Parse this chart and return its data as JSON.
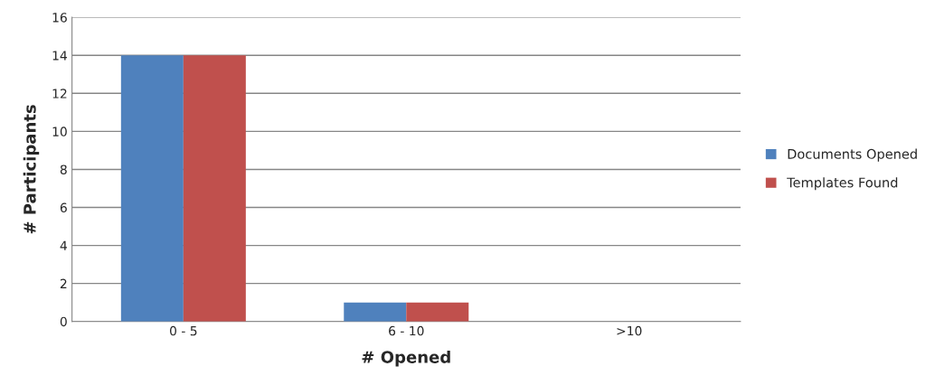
{
  "chart_data": {
    "type": "bar",
    "xlabel": "# Opened",
    "ylabel": "# Participants",
    "categories": [
      "0 - 5",
      "6 - 10",
      ">10"
    ],
    "series": [
      {
        "name": "Documents Opened",
        "color": "#4f81bd",
        "values": [
          14,
          1,
          0
        ]
      },
      {
        "name": "Templates Found",
        "color": "#c0504d",
        "values": [
          14,
          1,
          0
        ]
      }
    ],
    "ylim": [
      0,
      16
    ],
    "yticks": [
      0,
      2,
      4,
      6,
      8,
      10,
      12,
      14,
      16
    ],
    "grid": "y",
    "legend": "right"
  }
}
